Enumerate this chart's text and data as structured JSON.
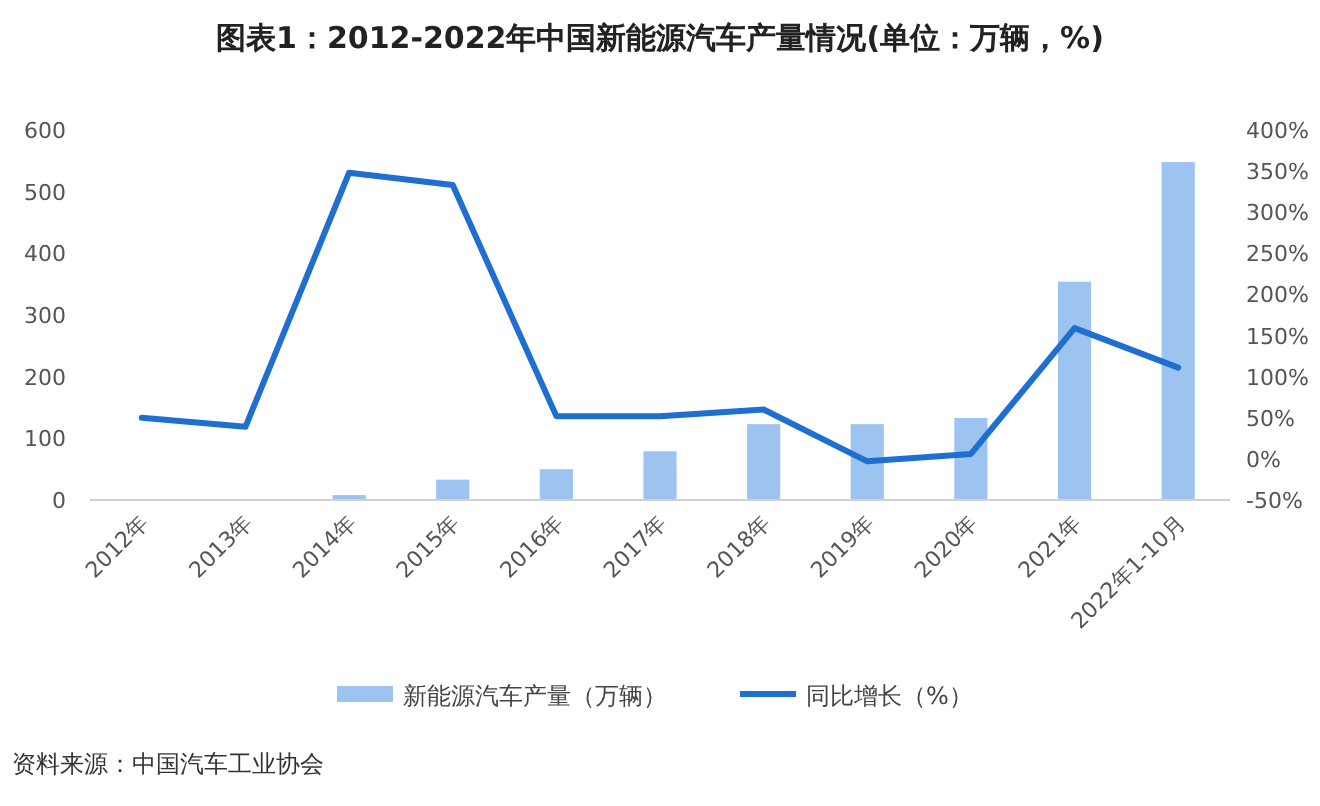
{
  "chart_data": {
    "type": "bar",
    "title": "图表1：2012-2022年中国新能源汽车产量情况(单位：万辆，%)",
    "categories": [
      "2012年",
      "2013年",
      "2014年",
      "2015年",
      "2016年",
      "2017年",
      "2018年",
      "2019年",
      "2020年",
      "2021年",
      "2022年1-10月"
    ],
    "series": [
      {
        "name": "新能源汽车产量（万辆）",
        "color": "#9dc3f0",
        "values": [
          null,
          null,
          8,
          33,
          50,
          79,
          123,
          123,
          133,
          354,
          548
        ]
      },
      {
        "name": "同比增长（%）",
        "type": "line",
        "axis": "y2",
        "color": "#1f6fd1",
        "values": [
          50,
          39,
          348,
          333,
          52,
          52,
          60,
          -3,
          6,
          159,
          111
        ]
      }
    ],
    "ylim": [
      0,
      600
    ],
    "yticks": [
      0,
      100,
      200,
      300,
      400,
      500,
      600
    ],
    "y2lim": [
      -50,
      400
    ],
    "y2ticks": [
      {
        "value": -50,
        "label": "-50%"
      },
      {
        "value": 0,
        "label": "0%"
      },
      {
        "value": 50,
        "label": "50%"
      },
      {
        "value": 100,
        "label": "100%"
      },
      {
        "value": 150,
        "label": "150%"
      },
      {
        "value": 200,
        "label": "200%"
      },
      {
        "value": 250,
        "label": "250%"
      },
      {
        "value": 300,
        "label": "300%"
      },
      {
        "value": 350,
        "label": "350%"
      },
      {
        "value": 400,
        "label": "400%"
      }
    ],
    "legend": "bottom",
    "annotations": [
      "资料来源：中国汽车工业协会"
    ]
  }
}
